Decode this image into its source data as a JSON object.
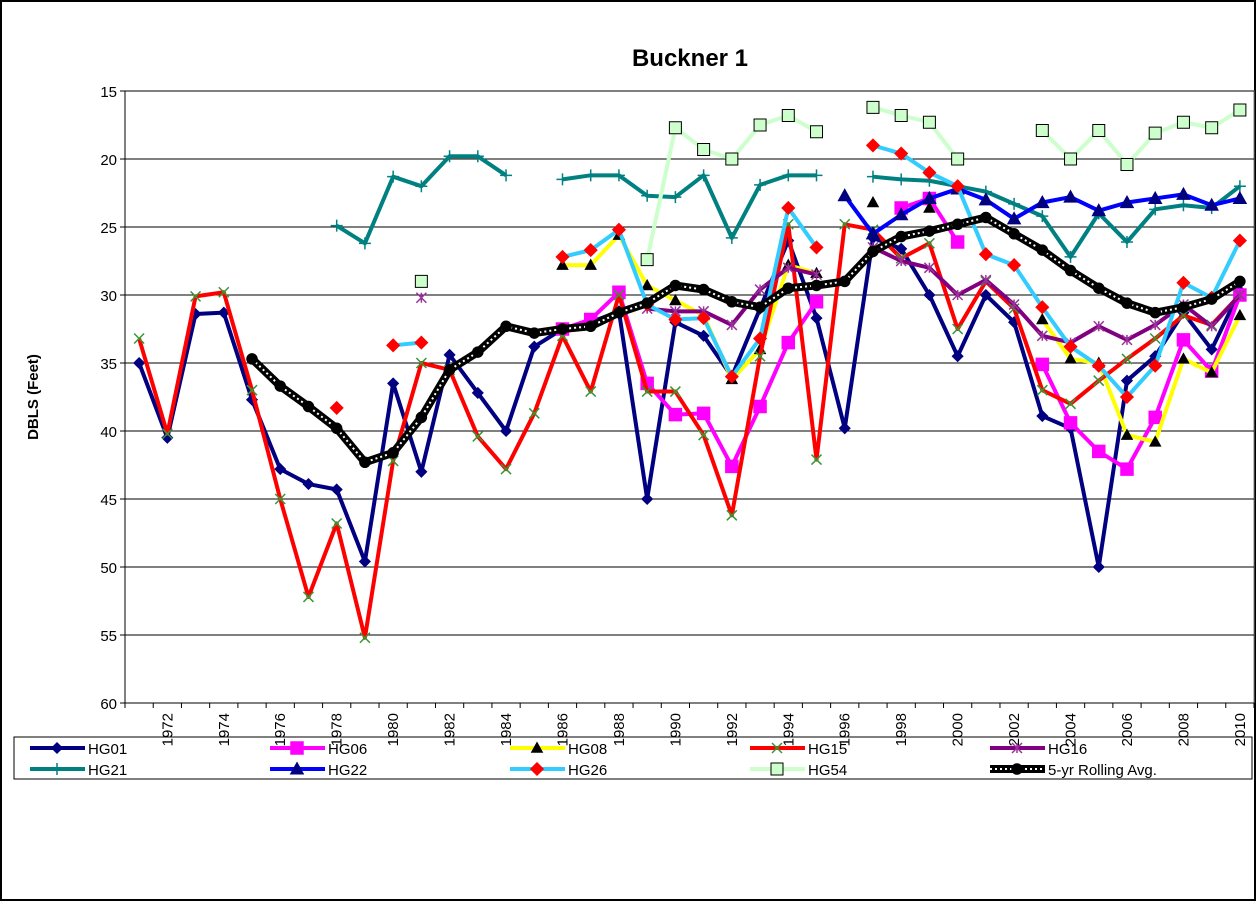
{
  "chart_data": {
    "type": "line",
    "title": "Buckner 1",
    "y_label": "DBLS (Feet)",
    "categories": [
      null,
      "1972",
      null,
      "1974",
      null,
      "1976",
      null,
      "1978",
      null,
      "1980",
      null,
      "1982",
      null,
      "1984",
      null,
      "1986",
      null,
      "1988",
      null,
      "1990",
      null,
      "1992",
      null,
      "1994",
      null,
      "1996",
      null,
      "1998",
      null,
      "2000",
      null,
      "2002",
      null,
      "2004",
      null,
      "2006",
      null,
      "2008",
      null,
      "2010"
    ],
    "ylim": [
      15,
      60
    ],
    "y_reversed": true,
    "yticks": [
      15,
      20,
      25,
      30,
      35,
      40,
      45,
      50,
      55,
      60
    ],
    "grid": true,
    "legend": "bottom",
    "series": [
      {
        "name": "HG01",
        "color": "#000080",
        "values": [
          35,
          40.5,
          31.4,
          31.3,
          37.7,
          42.8,
          43.9,
          44.3,
          49.6,
          36.5,
          43,
          34.4,
          37.2,
          40,
          33.8,
          32.5,
          32,
          31.2,
          45,
          32,
          33,
          36,
          31,
          26,
          31.7,
          39.8,
          25.8,
          26.6,
          30,
          34.5,
          30,
          32,
          38.9,
          39.8,
          50,
          36.3,
          34.5,
          31.3,
          34,
          29.7
        ]
      },
      {
        "name": "HG06",
        "color": "#ff00ff",
        "values": [
          null,
          null,
          null,
          null,
          null,
          null,
          null,
          null,
          null,
          null,
          null,
          null,
          null,
          null,
          null,
          32.5,
          31.8,
          29.8,
          36.5,
          38.8,
          38.7,
          42.6,
          38.2,
          33.5,
          30.5,
          null,
          null,
          23.6,
          22.9,
          26.1,
          null,
          null,
          35.1,
          39.4,
          41.5,
          42.8,
          39,
          33.3,
          35.6,
          30
        ]
      },
      {
        "name": "HG08",
        "color": "#ffff00",
        "values": [
          null,
          null,
          null,
          null,
          null,
          null,
          null,
          null,
          null,
          null,
          null,
          null,
          null,
          null,
          null,
          27.8,
          27.8,
          25.6,
          29.3,
          30.4,
          31.5,
          36.2,
          34,
          27.8,
          28.4,
          null,
          23.2,
          null,
          23.6,
          null,
          null,
          null,
          31.8,
          34.7,
          35,
          40.3,
          40.8,
          34.7,
          35.7,
          31.5
        ]
      },
      {
        "name": "HG15",
        "color": "#ff0000",
        "values": [
          33.2,
          40.2,
          30.1,
          29.8,
          37,
          45,
          52.2,
          46.8,
          55.2,
          42.2,
          35,
          35.5,
          40.4,
          42.8,
          38.7,
          33,
          37.1,
          30,
          37.1,
          37.1,
          40.3,
          46.2,
          34.5,
          24.8,
          42.1,
          24.8,
          25.2,
          27.3,
          26.2,
          32.5,
          29,
          31,
          37,
          38,
          36.3,
          34.7,
          33.2,
          31.5,
          32.2,
          30
        ]
      },
      {
        "name": "HG16",
        "color": "#800080",
        "values": [
          null,
          null,
          null,
          null,
          null,
          null,
          null,
          null,
          null,
          null,
          30.2,
          null,
          null,
          null,
          null,
          null,
          null,
          null,
          31,
          31.2,
          31.2,
          32.2,
          29.6,
          28,
          28.5,
          null,
          26.5,
          27.5,
          28,
          30,
          28.9,
          30.7,
          33,
          33.5,
          32.3,
          33.3,
          32.2,
          30.7,
          32.3,
          30
        ]
      },
      {
        "name": "HG21",
        "color": "#008080",
        "values": [
          null,
          null,
          null,
          null,
          null,
          null,
          null,
          24.9,
          26.2,
          21.3,
          22,
          19.8,
          19.8,
          21.2,
          null,
          21.5,
          21.2,
          21.2,
          22.7,
          22.8,
          21.2,
          25.8,
          21.9,
          21.2,
          21.2,
          null,
          21.3,
          21.5,
          21.6,
          22,
          22.4,
          23.3,
          24.2,
          27.2,
          24,
          26.1,
          23.7,
          23.4,
          23.6,
          22
        ]
      },
      {
        "name": "HG22",
        "color": "#0000ff",
        "values": [
          null,
          null,
          null,
          null,
          null,
          null,
          null,
          null,
          null,
          null,
          null,
          null,
          null,
          null,
          null,
          null,
          null,
          null,
          null,
          null,
          null,
          null,
          null,
          null,
          null,
          22.7,
          25.5,
          24.1,
          22.9,
          22.2,
          23,
          24.4,
          23.2,
          22.8,
          23.8,
          23.2,
          22.9,
          22.6,
          23.4,
          22.9
        ]
      },
      {
        "name": "HG26",
        "color": "#33ccff",
        "values": [
          null,
          null,
          null,
          null,
          null,
          null,
          null,
          38.3,
          null,
          33.7,
          33.5,
          null,
          null,
          null,
          null,
          27.2,
          26.7,
          25.2,
          30.7,
          31.8,
          31.7,
          36,
          33.2,
          23.6,
          26.5,
          null,
          19,
          19.6,
          21,
          22,
          27,
          27.8,
          30.9,
          33.8,
          35.2,
          37.5,
          35.2,
          29.1,
          30.2,
          26
        ]
      },
      {
        "name": "HG54",
        "color": "#ccffcc",
        "values": [
          null,
          null,
          null,
          null,
          null,
          null,
          null,
          null,
          null,
          null,
          29,
          null,
          null,
          null,
          null,
          null,
          null,
          null,
          27.4,
          17.7,
          19.3,
          20,
          17.5,
          16.8,
          18,
          null,
          16.2,
          16.8,
          17.3,
          20,
          null,
          null,
          17.9,
          20,
          17.9,
          20.4,
          18.1,
          17.3,
          17.7,
          16.4
        ]
      },
      {
        "name": "5-yr Rolling Avg.",
        "color": "#000000",
        "values": [
          null,
          null,
          null,
          null,
          34.7,
          36.7,
          38.2,
          39.8,
          42.3,
          41.6,
          39,
          35.5,
          34.2,
          32.3,
          32.8,
          32.5,
          32.3,
          31.3,
          30.6,
          29.3,
          29.6,
          30.5,
          30.9,
          29.5,
          29.3,
          29,
          26.8,
          25.7,
          25.3,
          24.8,
          24.3,
          25.5,
          26.7,
          28.2,
          29.5,
          30.6,
          31.3,
          30.9,
          30.3,
          29
        ]
      }
    ]
  }
}
